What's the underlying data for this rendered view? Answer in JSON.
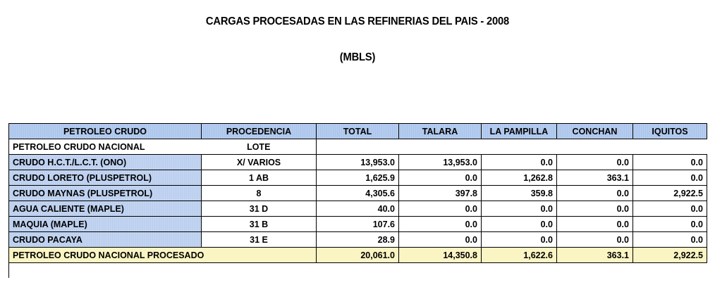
{
  "header": {
    "title": "CARGAS PROCESADAS EN LAS REFINERIAS DEL PAIS - 2008",
    "unit": "(MBLS)"
  },
  "table": {
    "columns": [
      "PETROLEO CRUDO",
      "PROCEDENCIA",
      "TOTAL",
      "TALARA",
      "LA PAMPILLA",
      "CONCHAN",
      "IQUITOS"
    ],
    "section": {
      "label": "PETROLEO CRUDO NACIONAL",
      "procedencia": "LOTE"
    },
    "rows": [
      {
        "name": "CRUDO H.C.T./L.C.T. (ONO)",
        "procedencia": "X/ VARIOS",
        "total": "13,953.0",
        "talara": "13,953.0",
        "la_pampilla": "0.0",
        "conchan": "0.0",
        "iquitos": "0.0"
      },
      {
        "name": "CRUDO LORETO (PLUSPETROL)",
        "procedencia": "1 AB",
        "total": "1,625.9",
        "talara": "0.0",
        "la_pampilla": "1,262.8",
        "conchan": "363.1",
        "iquitos": "0.0"
      },
      {
        "name": "CRUDO MAYNAS (PLUSPETROL)",
        "procedencia": "8",
        "total": "4,305.6",
        "talara": "397.8",
        "la_pampilla": "359.8",
        "conchan": "0.0",
        "iquitos": "2,922.5"
      },
      {
        "name": "AGUA CALIENTE (MAPLE)",
        "procedencia": "31 D",
        "total": "40.0",
        "talara": "0.0",
        "la_pampilla": "0.0",
        "conchan": "0.0",
        "iquitos": "0.0"
      },
      {
        "name": "MAQUIA (MAPLE)",
        "procedencia": "31 B",
        "total": "107.6",
        "talara": "0.0",
        "la_pampilla": "0.0",
        "conchan": "0.0",
        "iquitos": "0.0"
      },
      {
        "name": "CRUDO PACAYA",
        "procedencia": "31 E",
        "total": "28.9",
        "talara": "0.0",
        "la_pampilla": "0.0",
        "conchan": "0.0",
        "iquitos": "0.0"
      }
    ],
    "total_row": {
      "label": "PETROLEO CRUDO NACIONAL PROCESADO",
      "total": "20,061.0",
      "talara": "14,350.8",
      "la_pampilla": "1,622.6",
      "conchan": "363.1",
      "iquitos": "2,922.5"
    }
  }
}
